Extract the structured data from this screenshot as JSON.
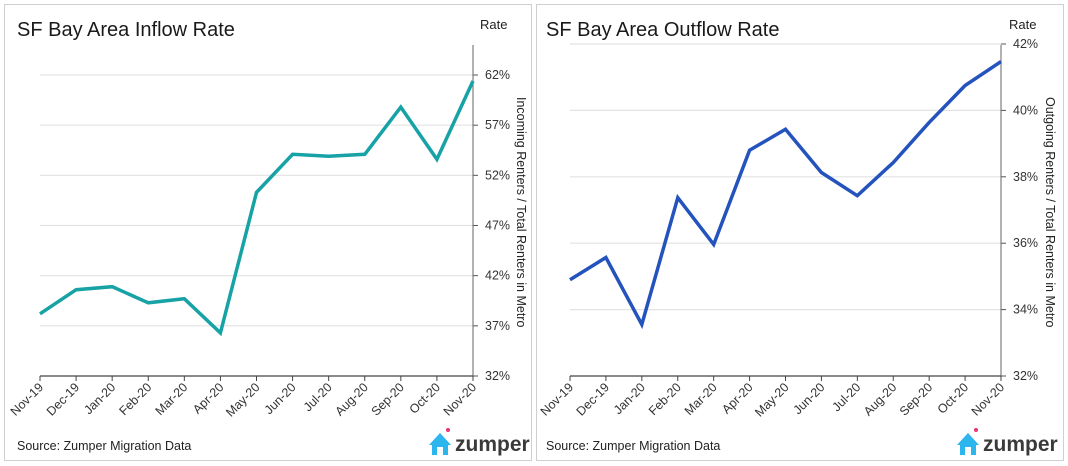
{
  "chart_data": [
    {
      "type": "line",
      "title": "SF Bay Area Inflow Rate",
      "y_axis_title": "Rate",
      "ylabel": "Incoming Renters / Total Renters in Metro",
      "xlabel": "",
      "categories": [
        "Nov-19",
        "Dec-19",
        "Jan-20",
        "Feb-20",
        "Mar-20",
        "Apr-20",
        "May-20",
        "Jun-20",
        "Jul-20",
        "Aug-20",
        "Sep-20",
        "Oct-20",
        "Nov-20"
      ],
      "series": [
        {
          "name": "Inflow Rate",
          "values": [
            38.2,
            40.6,
            40.9,
            39.3,
            39.7,
            36.3,
            50.3,
            54.1,
            53.9,
            54.1,
            58.8,
            53.6,
            61.4
          ]
        }
      ],
      "ylim": [
        32,
        65
      ],
      "yticks": [
        32,
        37,
        42,
        47,
        52,
        57,
        62
      ],
      "ytick_labels": [
        "32%",
        "37%",
        "42%",
        "47%",
        "52%",
        "57%",
        "62%"
      ],
      "grid": true,
      "y_axis_side": "right",
      "color": "#17a2a6",
      "source": "Source: Zumper Migration Data",
      "logo": "zumper"
    },
    {
      "type": "line",
      "title": "SF Bay Area Outflow Rate",
      "y_axis_title": "Rate",
      "ylabel": "Outgoing Renters / Total Renters in Metro",
      "xlabel": "",
      "categories": [
        "Nov-19",
        "Dec-19",
        "Jan-20",
        "Feb-20",
        "Mar-20",
        "Apr-20",
        "May-20",
        "Jun-20",
        "Jul-20",
        "Aug-20",
        "Sep-20",
        "Oct-20",
        "Nov-20"
      ],
      "series": [
        {
          "name": "Outflow Rate",
          "values": [
            34.9,
            35.57,
            33.55,
            37.37,
            35.96,
            38.8,
            39.43,
            38.13,
            37.43,
            38.43,
            39.64,
            40.75,
            41.47
          ]
        }
      ],
      "ylim": [
        32,
        42
      ],
      "yticks": [
        32,
        34,
        36,
        38,
        40,
        42
      ],
      "ytick_labels": [
        "32%",
        "34%",
        "36%",
        "38%",
        "40%",
        "42%"
      ],
      "grid": true,
      "y_axis_side": "right",
      "color": "#2453bd",
      "source": "Source: Zumper Migration Data",
      "logo": "zumper"
    }
  ]
}
